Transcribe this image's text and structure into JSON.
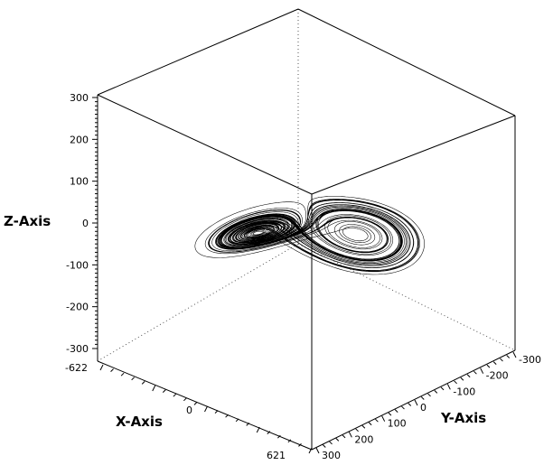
{
  "chart_data": {
    "type": "line",
    "projection": "3d-box",
    "grid": false,
    "legend": "none",
    "colors": {
      "line": "#000000",
      "box": "#000000",
      "hidden_edges": "#555555"
    },
    "axes": {
      "x": {
        "label": "X-Axis",
        "range": [
          -622,
          621
        ],
        "ticks": [
          "-622",
          "0",
          "621"
        ]
      },
      "y": {
        "label": "Y-Axis",
        "range": [
          -300,
          300
        ],
        "ticks": [
          "-300",
          "-200",
          "-100",
          "0",
          "100",
          "200",
          "300"
        ]
      },
      "z": {
        "label": "Z-Axis",
        "range": [
          -300,
          300
        ],
        "ticks": [
          "300",
          "200",
          "100",
          "0",
          "-100",
          "-200",
          "-300"
        ]
      }
    },
    "series": [
      {
        "generator": "lorenz-like double-scroll attractor",
        "sample_points": [
          {
            "x": -150,
            "y": 40,
            "z": 60
          },
          {
            "x": -60,
            "y": 20,
            "z": 120
          },
          {
            "x": 80,
            "y": -30,
            "z": 40
          },
          {
            "x": 150,
            "y": -40,
            "z": -60
          },
          {
            "x": 60,
            "y": -20,
            "z": -120
          },
          {
            "x": -80,
            "y": 30,
            "z": -40
          }
        ]
      }
    ]
  }
}
